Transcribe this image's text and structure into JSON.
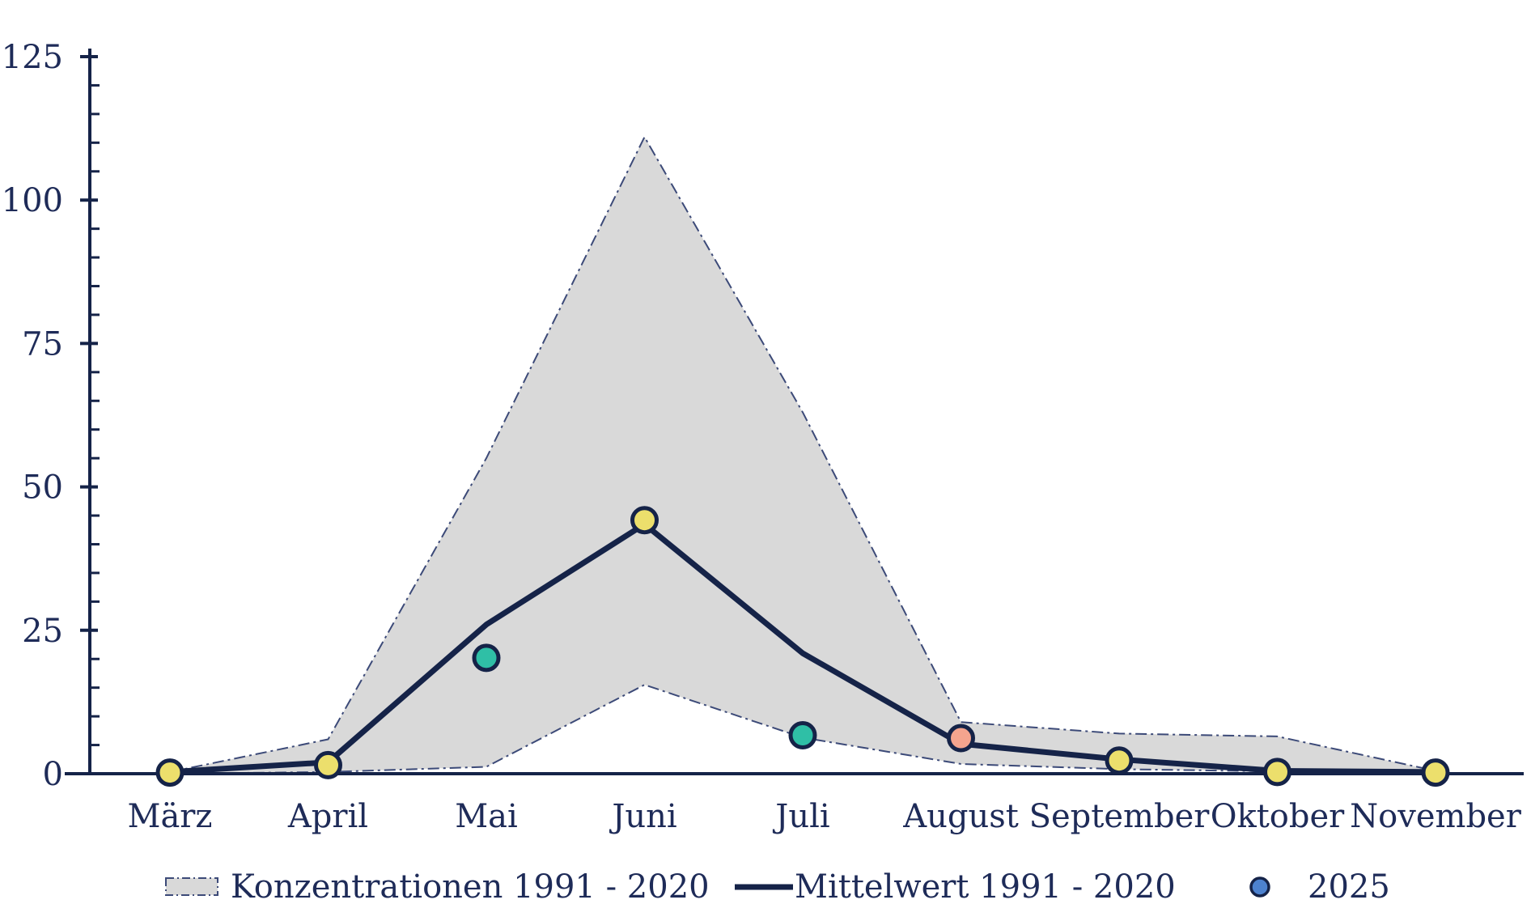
{
  "legend": {
    "items": [
      {
        "label": "Konzentrationen 1991 - 2020",
        "swatch": "band"
      },
      {
        "label": "Mittelwert 1991 - 2020",
        "swatch": "line"
      },
      {
        "label": "2025",
        "swatch": "dot"
      }
    ]
  },
  "chart_data": {
    "type": "line",
    "categories": [
      "März",
      "April",
      "Mai",
      "Juni",
      "Juli",
      "August",
      "September",
      "Oktober",
      "November"
    ],
    "title": "",
    "xlabel": "",
    "ylabel": "",
    "ylim": [
      0,
      125
    ],
    "y_ticks": [
      0,
      25,
      50,
      75,
      100,
      125
    ],
    "y_minor_step": 5,
    "grid": false,
    "legend_position": "bottom",
    "series": [
      {
        "name": "Konzentrationen 1991 - 2020",
        "type": "band",
        "upper": [
          0.3,
          6,
          55,
          111,
          63,
          9,
          7,
          6.5,
          0.5
        ],
        "lower": [
          0,
          0.3,
          1.2,
          15.5,
          6.3,
          1.7,
          0.8,
          0.4,
          0.2
        ]
      },
      {
        "name": "Mittelwert 1991 - 2020",
        "type": "line",
        "values": [
          0.3,
          2,
          26,
          43.5,
          21,
          5.2,
          2.5,
          0.5,
          0.3
        ]
      },
      {
        "name": "2025",
        "type": "scatter",
        "values": [
          0.2,
          1.5,
          20.2,
          44.2,
          6.7,
          6.2,
          2.3,
          0.3,
          0.2
        ],
        "point_colors": [
          "yellow",
          "yellow",
          "teal",
          "yellow",
          "teal",
          "salmon",
          "yellow",
          "yellow",
          "yellow"
        ]
      }
    ],
    "colors": {
      "navy_text": "#1e2b58",
      "line": "#152348",
      "band_fill": "#d9d9d9",
      "band_edge": "#3c4a78",
      "yellow": "#ecdf6c",
      "teal": "#2fbfa6",
      "salmon": "#f4a48e",
      "blue": "#4d82cf"
    }
  }
}
